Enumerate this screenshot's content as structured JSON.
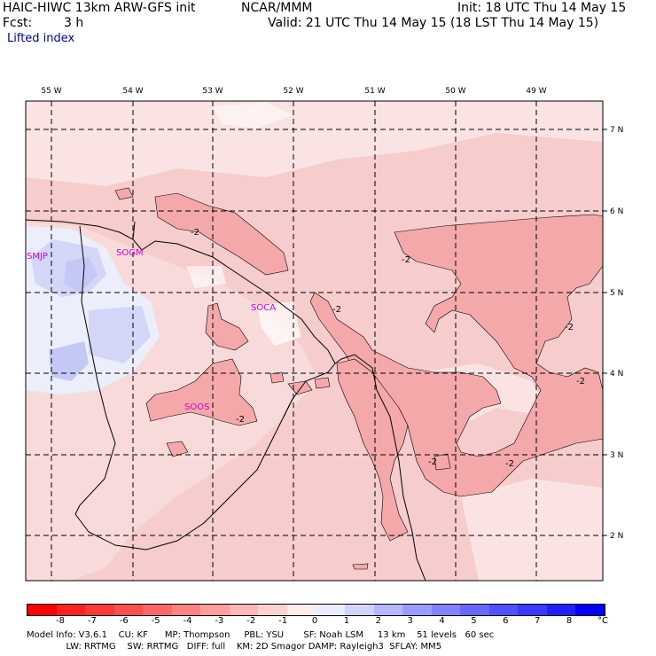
{
  "header": {
    "model": "HAIC-HIWC 13km ARW-GFS init",
    "org": "NCAR/MMM",
    "init": "Init: 18 UTC Thu 14 May 15",
    "fcst_label": "Fcst:",
    "fcst_value": "3 h",
    "valid": "Valid: 21 UTC Thu 14 May 15 (18 LST Thu 14 May 15)",
    "field": "Lifted index"
  },
  "map": {
    "lon_labels": [
      "55 W",
      "54 W",
      "53 W",
      "52 W",
      "51 W",
      "50 W",
      "49 W"
    ],
    "lat_labels": [
      "7 N",
      "6 N",
      "5 N",
      "4 N",
      "3 N",
      "2 N"
    ],
    "stations": [
      "SMJP",
      "SOGM",
      "SOCA",
      "SOOS"
    ],
    "contour_label": "-2",
    "colors": {
      "background_pink": "#f6cccc",
      "light_pink": "#fbe3e3",
      "mid_pink": "#f5a8aa",
      "blue": "#d3d6f7",
      "blue_mid": "#b9bff2",
      "white": "#ffffff",
      "station": "#d000d0"
    }
  },
  "colorbar": {
    "ticks": [
      "-8",
      "-7",
      "-6",
      "-5",
      "-4",
      "-3",
      "-2",
      "-1",
      "0",
      "1",
      "2",
      "3",
      "4",
      "5",
      "6",
      "7",
      "8"
    ],
    "unit": "°C",
    "colors": [
      "#ff0000",
      "#ff2020",
      "#ff3838",
      "#ff5050",
      "#ff6868",
      "#ff8282",
      "#ff9c9c",
      "#ffb6b6",
      "#ffd2d2",
      "#ffecec",
      "#ececff",
      "#d2d2ff",
      "#b6b6ff",
      "#9c9cff",
      "#8282ff",
      "#6868ff",
      "#5050ff",
      "#3838ff",
      "#2020ff",
      "#0000ff"
    ]
  },
  "footer": {
    "line1": "Model Info: V3.6.1    CU: KF      MP: Thompson     PBL: YSU       SF: Noah LSM     13 km    51 levels   60 sec",
    "line2": "              LW: RRTMG    SW: RRTMG   DIFF: full    KM: 2D Smagor DAMP: Rayleigh3  SFLAY: MM5"
  }
}
